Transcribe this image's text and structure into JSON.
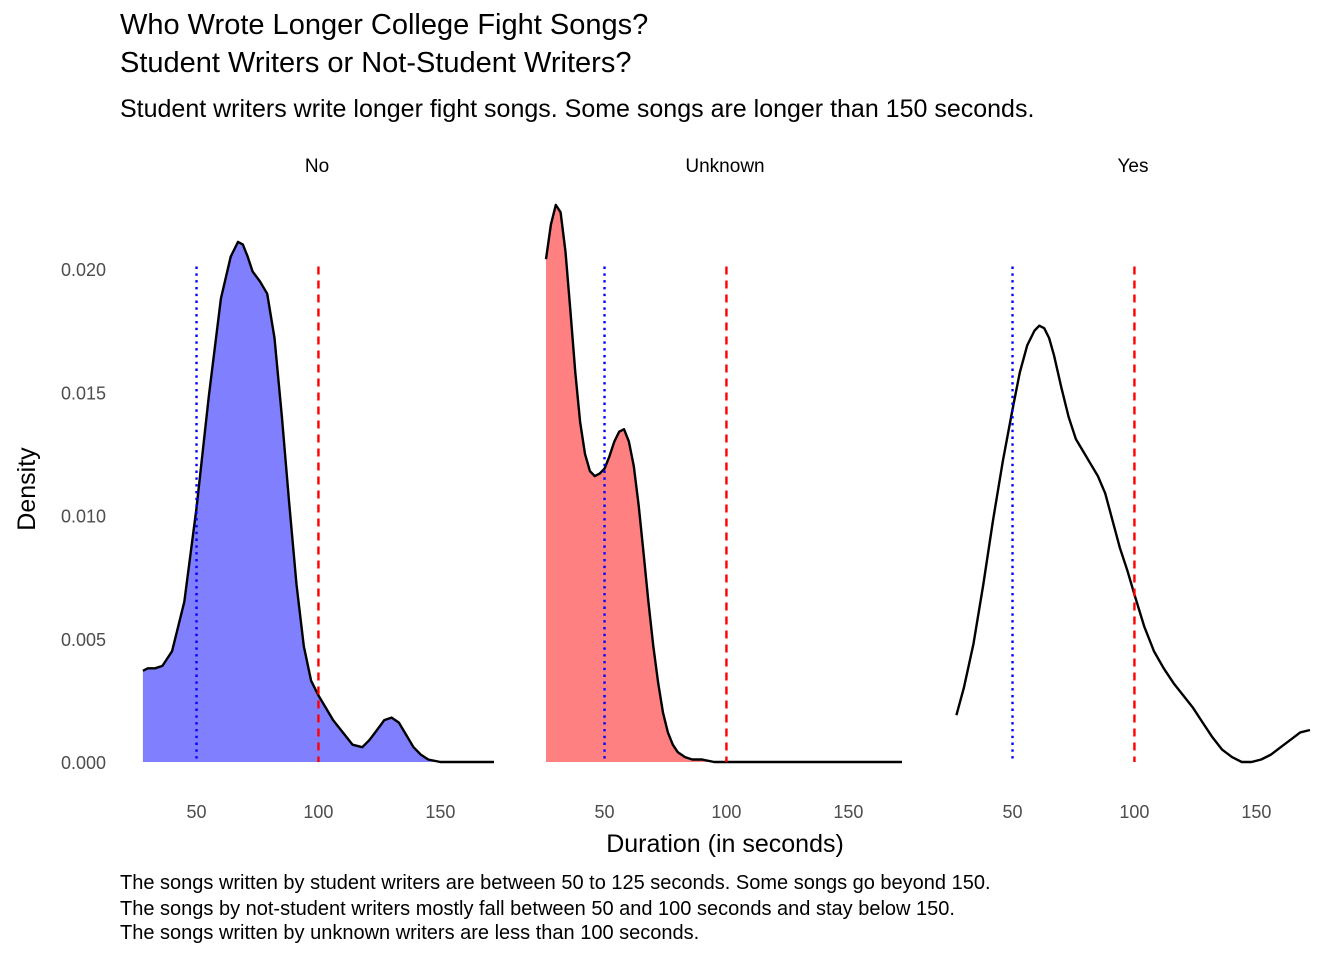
{
  "chart_data": {
    "type": "area",
    "title_line1": "Who Wrote Longer College Fight Songs?",
    "title_line2": "Student Writers or Not-Student Writers?",
    "subtitle": "Student writers write longer fight songs. Some songs are longer than 150 seconds.",
    "xlabel": "Duration (in seconds)",
    "ylabel": "Density",
    "xlim": [
      26,
      172
    ],
    "ylim": [
      0,
      0.0228
    ],
    "xticks": [
      50,
      100,
      150
    ],
    "xtick_labels": [
      "50",
      "100",
      "150"
    ],
    "yticks": [
      0.0,
      0.005,
      0.01,
      0.015,
      0.02
    ],
    "ytick_labels": [
      "0.000",
      "0.005",
      "0.010",
      "0.015",
      "0.020"
    ],
    "reference_lines": [
      {
        "name": "lower reference",
        "x": 50,
        "color": "#0000ff",
        "style": "dotted"
      },
      {
        "name": "upper reference",
        "x": 100,
        "color": "#ff0000",
        "style": "dashed"
      }
    ],
    "panels": [
      {
        "label": "No",
        "fill": "#8080ff",
        "filled": true,
        "x": [
          28,
          30,
          33,
          36,
          40,
          45,
          50,
          55,
          60,
          64,
          67,
          69,
          71,
          73,
          76,
          79,
          82,
          85,
          88,
          91,
          94,
          97,
          100,
          103,
          106,
          110,
          114,
          118,
          121,
          124,
          127,
          130,
          133,
          136,
          139,
          142,
          145,
          150,
          155,
          160,
          165,
          170,
          172
        ],
        "y": [
          0.0037,
          0.0038,
          0.0038,
          0.0039,
          0.0045,
          0.0065,
          0.0103,
          0.0148,
          0.0188,
          0.0205,
          0.0211,
          0.021,
          0.0205,
          0.0199,
          0.0195,
          0.019,
          0.0172,
          0.014,
          0.0105,
          0.0072,
          0.0047,
          0.0033,
          0.0027,
          0.0022,
          0.0017,
          0.0012,
          0.0007,
          0.0006,
          0.0009,
          0.0013,
          0.0017,
          0.0018,
          0.0016,
          0.0011,
          0.0006,
          0.0003,
          0.0001,
          0.0,
          0.0,
          0.0,
          0.0,
          0.0,
          0.0
        ]
      },
      {
        "label": "Unknown",
        "fill": "#ff8080",
        "filled": true,
        "x": [
          26,
          28,
          30,
          32,
          34,
          36,
          38,
          40,
          42,
          44,
          46,
          48,
          50,
          52,
          54,
          56,
          58,
          60,
          62,
          64,
          66,
          68,
          70,
          72,
          74,
          76,
          78,
          80,
          83,
          86,
          90,
          95,
          100,
          105,
          110,
          120,
          130,
          140,
          150,
          160,
          172
        ],
        "y": [
          0.0204,
          0.0218,
          0.0226,
          0.0223,
          0.0207,
          0.0183,
          0.0158,
          0.0138,
          0.0125,
          0.0118,
          0.0116,
          0.0117,
          0.0119,
          0.0124,
          0.013,
          0.0134,
          0.0135,
          0.013,
          0.012,
          0.0104,
          0.0085,
          0.0065,
          0.0047,
          0.0032,
          0.002,
          0.0012,
          0.0007,
          0.0004,
          0.0002,
          0.0001,
          0.0001,
          0.0,
          0.0,
          0.0,
          0.0,
          0.0,
          0.0,
          0.0,
          0.0,
          0.0,
          0.0
        ]
      },
      {
        "label": "Yes",
        "fill": "none",
        "filled": false,
        "x": [
          27,
          30,
          34,
          38,
          42,
          46,
          50,
          53,
          56,
          59,
          61,
          63,
          65,
          67,
          70,
          73,
          76,
          79,
          82,
          85,
          88,
          91,
          94,
          97,
          100,
          104,
          108,
          112,
          116,
          120,
          124,
          128,
          132,
          136,
          140,
          144,
          148,
          152,
          156,
          160,
          164,
          168,
          172
        ],
        "y": [
          0.0019,
          0.003,
          0.0048,
          0.0072,
          0.0098,
          0.0122,
          0.0143,
          0.0158,
          0.0169,
          0.0175,
          0.0177,
          0.0176,
          0.0172,
          0.0165,
          0.0152,
          0.014,
          0.0131,
          0.0126,
          0.0121,
          0.0116,
          0.0109,
          0.0098,
          0.0087,
          0.0078,
          0.0068,
          0.0055,
          0.0045,
          0.0038,
          0.0032,
          0.0027,
          0.0022,
          0.0016,
          0.001,
          0.0005,
          0.0002,
          0.0,
          0.0,
          0.0001,
          0.0003,
          0.0006,
          0.0009,
          0.0012,
          0.0013
        ]
      }
    ]
  },
  "caption": {
    "line1": "The songs written by student writers are between 50 to 125 seconds. Some songs go beyond 150.",
    "line2": "The songs by not-student writers mostly fall between 50 and 100 seconds and stay below 150.",
    "line3": "The songs written by unknown writers are less than 100 seconds."
  }
}
